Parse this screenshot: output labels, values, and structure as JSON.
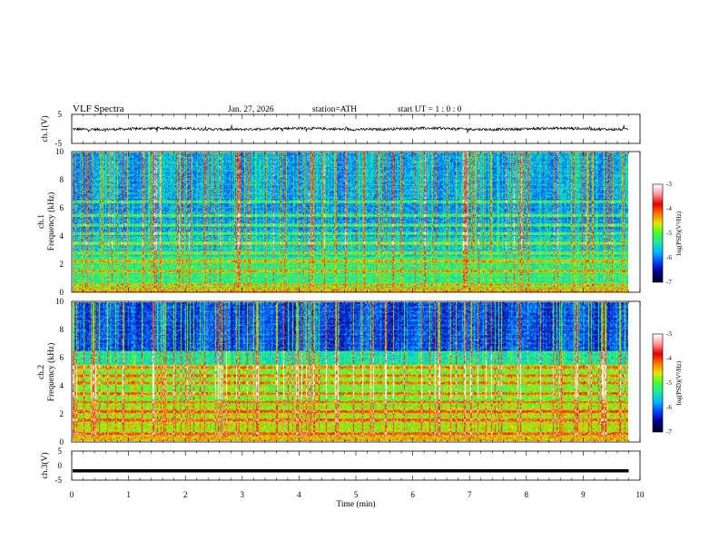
{
  "header": {
    "title": "VLF  Spectra",
    "date": "Jan. 27, 2026",
    "station": "station=ATH",
    "start_ut": "start  UT  =    1  : 0   : 0"
  },
  "colors": {
    "colormap": [
      "#000020",
      "#00008c",
      "#0a3cff",
      "#00b4ff",
      "#1ee6aa",
      "#3cff32",
      "#e6e600",
      "#ff7800",
      "#e60000",
      "#ff9696",
      "#ffffff"
    ]
  },
  "chart_data": [
    {
      "type": "line",
      "name": "ch1-waveform",
      "ylabel": "ch.1(V)",
      "xlim": [
        0,
        10
      ],
      "ylim": [
        -5,
        5
      ],
      "yticks": [
        "5",
        "-5"
      ],
      "signal_range_x": [
        0,
        9.8
      ],
      "baseline": 0,
      "noise_amplitude": 1.0
    },
    {
      "type": "heatmap",
      "name": "ch1-spectrogram",
      "ylabel": "Frequency (kHz)",
      "ylabel_prefix": "ch.1",
      "xlim": [
        0,
        10
      ],
      "ylim": [
        0,
        10
      ],
      "yticks": [
        "0",
        "2",
        "4",
        "6",
        "8",
        "10"
      ],
      "data_range_x": [
        0,
        9.8
      ],
      "colorbar": {
        "label": "log(PSD)(V²/Hz)",
        "range": [
          -7,
          -3
        ],
        "ticks": [
          "-3",
          "-4",
          "-5",
          "-6",
          "-7"
        ]
      },
      "bands_khz": [
        0.5,
        1.5,
        2.2,
        2.8,
        3.5,
        4.2,
        4.8,
        5.5,
        6.5
      ],
      "background_log_psd": -5.8
    },
    {
      "type": "heatmap",
      "name": "ch2-spectrogram",
      "ylabel": "Frequency (kHz)",
      "ylabel_prefix": "ch.2",
      "xlim": [
        0,
        10
      ],
      "ylim": [
        0,
        10
      ],
      "yticks": [
        "0",
        "2",
        "4",
        "6",
        "8",
        "10"
      ],
      "data_range_x": [
        0,
        9.8
      ],
      "colorbar": {
        "label": "log(PSD)(V²/Hz)",
        "range": [
          -7,
          -3
        ],
        "ticks": [
          "-3",
          "-4",
          "-5",
          "-6",
          "-7"
        ]
      },
      "bands_khz": [
        0.5,
        1.5,
        2.1,
        2.8,
        3.4,
        4.2,
        4.7,
        5.3
      ],
      "background_log_psd": -5.2
    },
    {
      "type": "line",
      "name": "ch3-waveform",
      "ylabel": "ch.3(V)",
      "xlabel": "Time  (min)",
      "xlim": [
        0,
        10
      ],
      "ylim": [
        -5,
        5
      ],
      "yticks": [
        "5",
        "0",
        "-5"
      ],
      "xticks": [
        "0",
        "1",
        "2",
        "3",
        "4",
        "5",
        "6",
        "7",
        "8",
        "9",
        "10"
      ],
      "signal_range_x": [
        0,
        9.8
      ],
      "baseline": -1.8,
      "noise_amplitude": 0.0
    }
  ]
}
